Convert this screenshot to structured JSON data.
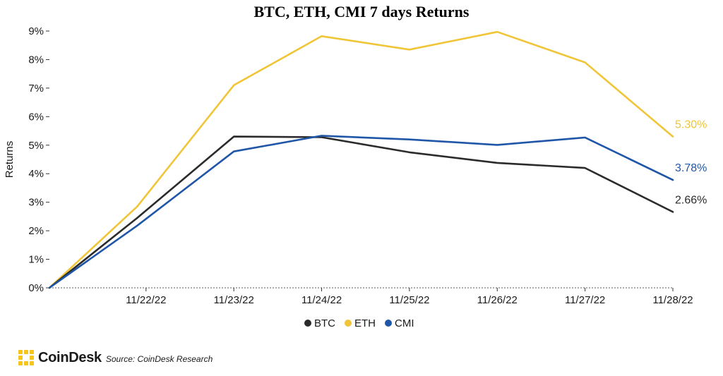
{
  "chart_data": {
    "type": "line",
    "title": "BTC, ETH, CMI 7 days Returns",
    "ylabel": "Returns",
    "xlabel": "",
    "x_tick_labels": [
      "11/22/22",
      "11/23/22",
      "11/24/22",
      "11/25/22",
      "11/26/22",
      "11/27/22",
      "11/28/22"
    ],
    "y_tick_labels": [
      "0%",
      "1%",
      "2%",
      "3%",
      "4%",
      "5%",
      "6%",
      "7%",
      "8%",
      "9%"
    ],
    "ylim": [
      0,
      9
    ],
    "x_range": [
      -1.1,
      6
    ],
    "grid": false,
    "legend_placement": "bottom-center",
    "series": [
      {
        "name": "BTC",
        "color": "#2b2b2b",
        "x": [
          -1.1,
          -0.1,
          1,
          2,
          3,
          4,
          5,
          6
        ],
        "values": [
          0,
          2.45,
          5.3,
          5.28,
          4.75,
          4.38,
          4.2,
          2.66
        ],
        "end_label": "2.66%"
      },
      {
        "name": "ETH",
        "color": "#f0c537",
        "x": [
          -1.1,
          -0.1,
          1,
          2,
          3,
          4,
          5,
          6
        ],
        "values": [
          0,
          2.85,
          7.1,
          8.82,
          8.35,
          8.97,
          7.9,
          5.3
        ],
        "end_label": "5.30%"
      },
      {
        "name": "CMI",
        "color": "#1f56a8",
        "x": [
          -1.1,
          -0.1,
          1,
          2,
          3,
          4,
          5,
          6
        ],
        "values": [
          0,
          2.18,
          4.78,
          5.33,
          5.2,
          5.01,
          5.27,
          3.78
        ],
        "end_label": "3.78%"
      }
    ]
  },
  "footer": {
    "brand": "CoinDesk",
    "source": "Source: CoinDesk Research",
    "logo_color": "#f5c518"
  }
}
